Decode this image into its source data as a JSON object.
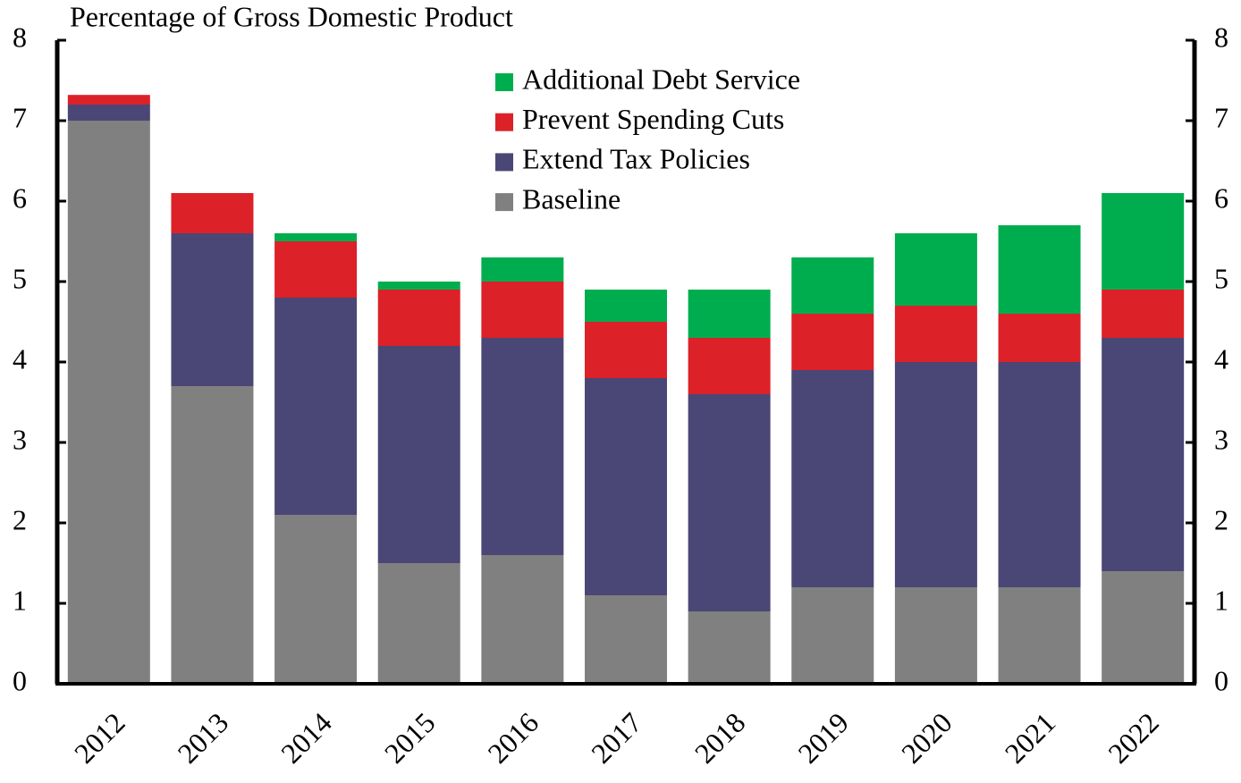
{
  "chart_data": {
    "type": "stacked_bar",
    "title": "Percentage of Gross Domestic Product",
    "categories": [
      "2012",
      "2013",
      "2014",
      "2015",
      "2016",
      "2017",
      "2018",
      "2019",
      "2020",
      "2021",
      "2022"
    ],
    "series": [
      {
        "name": "Baseline",
        "color": "#808080",
        "values": [
          7.0,
          3.7,
          2.1,
          1.5,
          1.6,
          1.1,
          0.9,
          1.2,
          1.2,
          1.2,
          1.4
        ]
      },
      {
        "name": "Extend Tax Policies",
        "color": "#4a4776",
        "values": [
          0.2,
          1.9,
          2.7,
          2.7,
          2.7,
          2.7,
          2.7,
          2.7,
          2.8,
          2.8,
          2.9
        ]
      },
      {
        "name": "Prevent Spending Cuts",
        "color": "#dc2128",
        "values": [
          0.12,
          0.5,
          0.7,
          0.7,
          0.7,
          0.7,
          0.7,
          0.7,
          0.7,
          0.6,
          0.6
        ]
      },
      {
        "name": "Additional Debt Service",
        "color": "#00ad4e",
        "values": [
          0,
          0,
          0.1,
          0.1,
          0.3,
          0.4,
          0.6,
          0.7,
          0.9,
          1.1,
          1.2
        ]
      }
    ],
    "ylim": [
      0,
      8
    ],
    "yticks": [
      0,
      1,
      2,
      3,
      4,
      5,
      6,
      7,
      8
    ],
    "y2lim": [
      0,
      8
    ],
    "y2ticks": [
      0,
      1,
      2,
      3,
      4,
      5,
      6,
      7,
      8
    ],
    "legend": "top-center"
  }
}
